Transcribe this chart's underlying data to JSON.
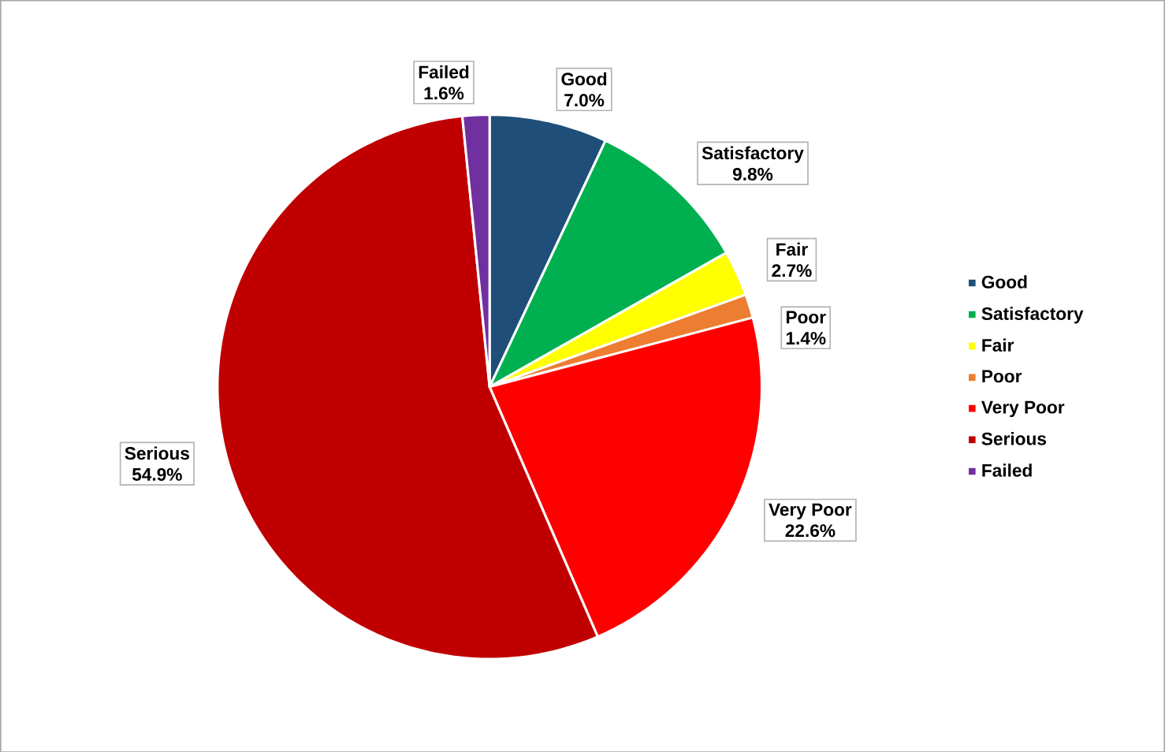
{
  "chart_data": {
    "type": "pie",
    "categories": [
      "Good",
      "Satisfactory",
      "Fair",
      "Poor",
      "Very Poor",
      "Serious",
      "Failed"
    ],
    "values": [
      7.0,
      9.8,
      2.7,
      1.4,
      22.6,
      54.9,
      1.6
    ],
    "value_labels": [
      "7.0%",
      "9.8%",
      "2.7%",
      "1.4%",
      "22.6%",
      "54.9%",
      "1.6%"
    ],
    "colors": [
      "#1f4e79",
      "#00b050",
      "#ffff00",
      "#ed7d31",
      "#ff0000",
      "#c00000",
      "#7030a0"
    ],
    "legend": "right"
  }
}
